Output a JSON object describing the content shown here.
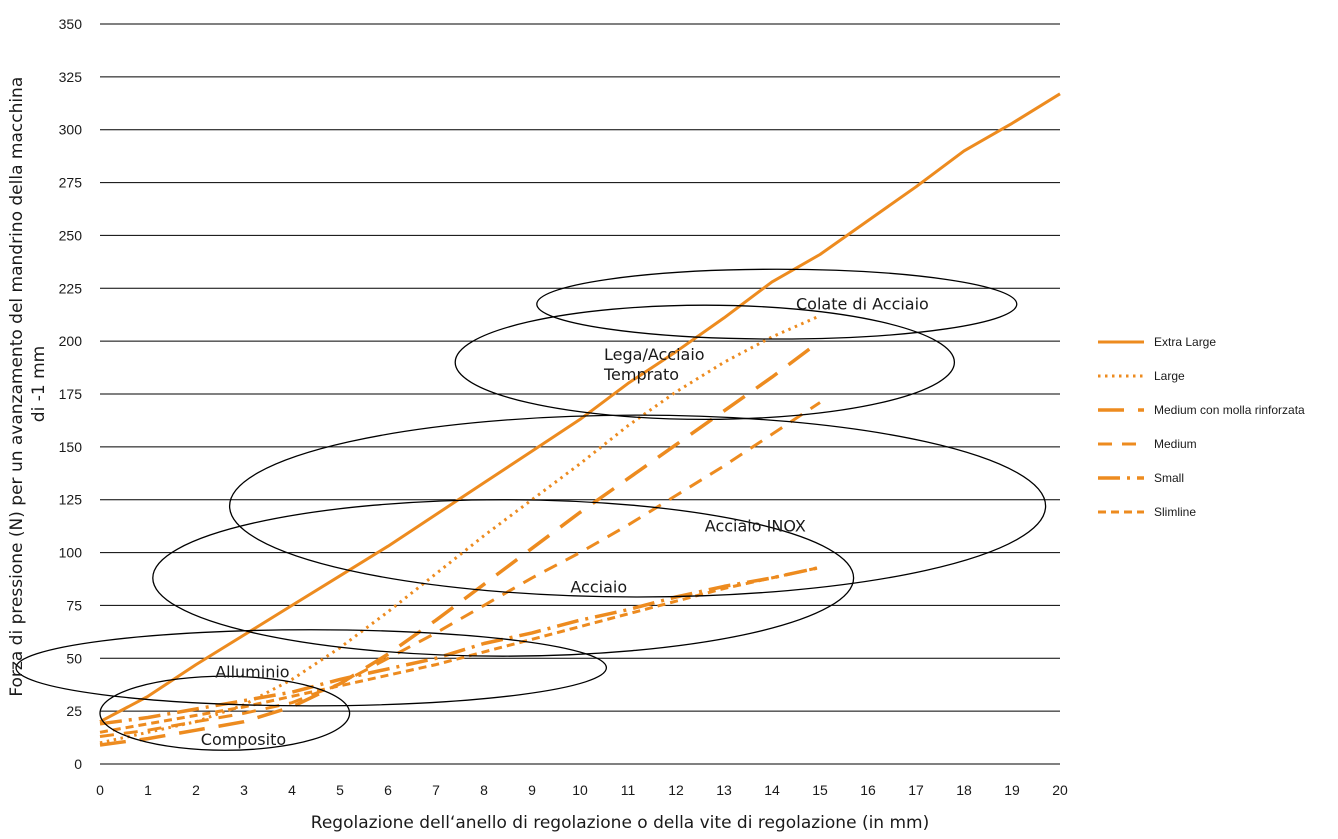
{
  "chart_data": {
    "type": "line",
    "title": "",
    "xlabel": "Regolazione dell‘anello di regolazione o della vite di regolazione (in mm)",
    "ylabel_lines": [
      "Forza di pressione (N) per un avanzamento del mandrino della macchina",
      "di -1 mm"
    ],
    "xlim": [
      0,
      20
    ],
    "ylim": [
      0,
      350
    ],
    "x_ticks": [
      "0",
      "1",
      "2",
      "3",
      "4",
      "5",
      "6",
      "7",
      "8",
      "9",
      "10",
      "11",
      "12",
      "13",
      "14",
      "15",
      "16",
      "17",
      "18",
      "19",
      "20"
    ],
    "y_ticks": [
      "0",
      "25",
      "50",
      "75",
      "100",
      "125",
      "150",
      "175",
      "200",
      "225",
      "250",
      "275",
      "300",
      "325",
      "350"
    ],
    "grid": "horizontal",
    "legend_position": "right",
    "series_color": "#ED8B1F",
    "series": [
      {
        "name": "Extra Large",
        "style": "solid",
        "x": [
          0,
          1,
          2,
          3,
          4,
          5,
          6,
          7,
          8,
          9,
          10,
          11,
          12,
          13,
          14,
          15,
          16,
          17,
          18,
          19,
          20
        ],
        "y": [
          20,
          32,
          47,
          61,
          75,
          89,
          103,
          118,
          133,
          148,
          163,
          180,
          195,
          211,
          228,
          241,
          257,
          273,
          290,
          303,
          317
        ]
      },
      {
        "name": "Large",
        "style": "dotted",
        "x": [
          0,
          1,
          2,
          3,
          4,
          5,
          6,
          7,
          8,
          9,
          10,
          11,
          12,
          13,
          14,
          15
        ],
        "y": [
          10,
          15,
          20,
          28,
          40,
          55,
          72,
          90,
          108,
          125,
          142,
          160,
          176,
          190,
          202,
          212
        ]
      },
      {
        "name": "Medium con molla rinforzata",
        "style": "longdash",
        "x": [
          0,
          1,
          2,
          3,
          4,
          5,
          6,
          7,
          8,
          9,
          10,
          11,
          12,
          13,
          14,
          15
        ],
        "y": [
          9,
          12,
          16,
          20,
          27,
          38,
          52,
          68,
          85,
          102,
          119,
          135,
          151,
          167,
          183,
          200
        ]
      },
      {
        "name": "Medium",
        "style": "dash",
        "x": [
          0,
          1,
          2,
          3,
          4,
          5,
          6,
          7,
          8,
          9,
          10,
          11,
          12,
          13,
          14,
          15
        ],
        "y": [
          13,
          16,
          20,
          24,
          29,
          38,
          50,
          62,
          75,
          88,
          100,
          113,
          127,
          141,
          156,
          171
        ]
      },
      {
        "name": "Small",
        "style": "dashdot",
        "x": [
          0,
          1,
          2,
          3,
          4,
          5,
          6,
          7,
          8,
          9,
          10,
          11,
          12,
          13,
          14,
          15
        ],
        "y": [
          19,
          22,
          26,
          30,
          34,
          40,
          45,
          50,
          57,
          62,
          68,
          73,
          79,
          84,
          88,
          93
        ]
      },
      {
        "name": "Slimline",
        "style": "shortdash",
        "x": [
          0,
          1,
          2,
          3,
          4,
          5,
          6,
          7,
          8,
          9,
          10,
          11,
          12,
          13,
          14,
          15
        ],
        "y": [
          15,
          19,
          23,
          27,
          32,
          37,
          42,
          47,
          53,
          59,
          65,
          71,
          77,
          83,
          88,
          93
        ]
      }
    ],
    "annotations": [
      {
        "label_lines": [
          "Composito"
        ],
        "cx": 2.6,
        "cy": 24,
        "rx": 2.6,
        "ry": 17.5,
        "label_x": 2.1,
        "label_y": 9
      },
      {
        "label_lines": [
          "Alluminio"
        ],
        "cx": 4.4,
        "cy": 45.5,
        "rx": 6.15,
        "ry": 18,
        "label_x": 2.4,
        "label_y": 41
      },
      {
        "label_lines": [
          "Acciaio"
        ],
        "cx": 8.4,
        "cy": 88,
        "rx": 7.3,
        "ry": 37,
        "label_x": 9.8,
        "label_y": 81
      },
      {
        "label_lines": [
          "Acciaio INOX"
        ],
        "cx": 11.2,
        "cy": 122,
        "rx": 8.5,
        "ry": 43,
        "label_x": 12.6,
        "label_y": 110
      },
      {
        "label_lines": [
          "Lega/Acciaio",
          "Temprato"
        ],
        "cx": 12.6,
        "cy": 190,
        "rx": 5.2,
        "ry": 27,
        "label_x": 10.5,
        "label_y": 191
      },
      {
        "label_lines": [
          "Colate di Acciaio"
        ],
        "cx": 14.1,
        "cy": 217.5,
        "rx": 5.0,
        "ry": 16.5,
        "label_x": 14.5,
        "label_y": 215
      }
    ]
  }
}
